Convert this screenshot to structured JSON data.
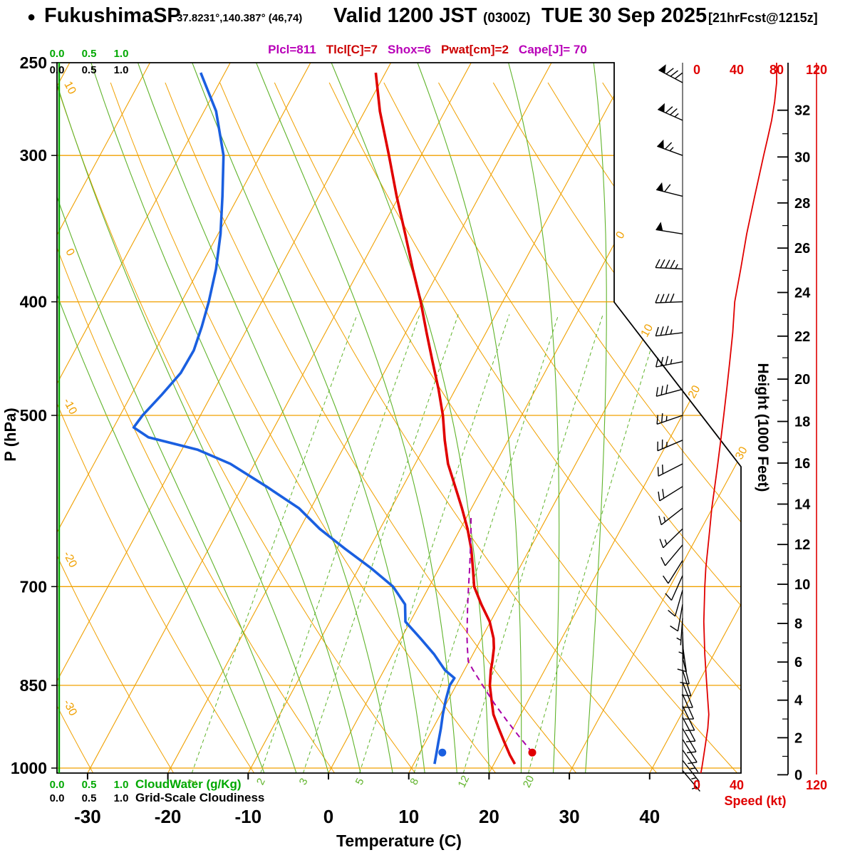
{
  "colors": {
    "orange": "#F0A000",
    "green": "#5FB32A",
    "green_text": "#00A800",
    "red": "#E00000",
    "blue": "#1A5FE0",
    "magenta": "#A800A8",
    "header_magenta": "#B800B8",
    "header_red": "#CC0000"
  },
  "header": {
    "bullet": "●",
    "station_name": "FukushimaSP",
    "station_coords": "37.8231°,140.387° (46,74)",
    "valid_main": "Valid 1200 JST",
    "valid_z": "(0300Z)",
    "valid_date": "TUE 30 Sep 2025",
    "forecast_tag": "[21hrFcst@1215z]",
    "param_segments": [
      {
        "text": "Plcl=811",
        "color": "#B800B8"
      },
      {
        "text": "Tlcl[C]=7",
        "color": "#CC0000"
      },
      {
        "text": "Shox=6",
        "color": "#B800B8"
      },
      {
        "text": "Pwat[cm]=2",
        "color": "#CC0000"
      },
      {
        "text": "Cape[J]= 70",
        "color": "#B800B8"
      }
    ]
  },
  "axes": {
    "pressure_label": "P (hPa)",
    "pressure_ticks": [
      250,
      300,
      400,
      500,
      700,
      850,
      1000
    ],
    "temperature_label": "Temperature (C)",
    "temperature_ticks": [
      -30,
      -20,
      -10,
      0,
      10,
      20,
      30,
      40
    ],
    "height_label": "Height (1000 Feet)",
    "height_ticks": [
      0,
      2,
      4,
      6,
      8,
      10,
      12,
      14,
      16,
      18,
      20,
      22,
      24,
      26,
      28,
      30,
      32
    ],
    "speed_label": "Speed (kt)",
    "speed_ticks_top": [
      0,
      40,
      80,
      120
    ],
    "speed_ticks_bottom": [
      0,
      40,
      120
    ]
  },
  "scales": {
    "cloudwater_values": [
      "0.0",
      "0.5",
      "1.0"
    ],
    "cloudiness_values": [
      "0.0",
      "0.5",
      "1.0"
    ],
    "cloudwater_label": "CloudWater (g/Kg)",
    "cloudiness_label": "Grid-Scale Cloudiness"
  },
  "chart_data": {
    "type": "skewt_sounding",
    "station": "FukushimaSP",
    "pressure_range_hpa": [
      250,
      1010
    ],
    "pressure_lines_hpa": [
      300,
      400,
      500,
      700,
      850,
      1000
    ],
    "isotherms_c": {
      "min": -90,
      "max": 40,
      "step": 10
    },
    "dry_adiabats_theta_c": {
      "min": -40,
      "max": 130,
      "step": 10
    },
    "moist_adiabats_c": [
      -8,
      -4,
      0,
      4,
      8,
      12,
      16,
      20,
      24,
      28,
      32
    ],
    "mixing_ratio_lines_gkg": [
      1,
      2,
      3,
      5,
      8,
      12,
      20
    ],
    "dry_adiabat_labels_c": [
      10,
      0,
      -10,
      -20,
      -30
    ],
    "isotherm_labels_c": [
      0,
      10,
      20,
      30
    ],
    "cloud_water_gkg": 0.0,
    "grid_scale_cloudiness": 0.0,
    "temperature_profile": [
      [
        992,
        22.6
      ],
      [
        975,
        21.4
      ],
      [
        950,
        19.8
      ],
      [
        925,
        18.2
      ],
      [
        900,
        16.6
      ],
      [
        875,
        15.4
      ],
      [
        850,
        14.2
      ],
      [
        825,
        13.3
      ],
      [
        811,
        12.9
      ],
      [
        790,
        12.2
      ],
      [
        775,
        11.5
      ],
      [
        750,
        9.9
      ],
      [
        725,
        7.7
      ],
      [
        700,
        5.6
      ],
      [
        675,
        4.2
      ],
      [
        650,
        2.7
      ],
      [
        625,
        0.9
      ],
      [
        600,
        -1.2
      ],
      [
        575,
        -3.5
      ],
      [
        550,
        -5.9
      ],
      [
        525,
        -7.9
      ],
      [
        500,
        -9.8
      ],
      [
        475,
        -12.1
      ],
      [
        450,
        -14.7
      ],
      [
        425,
        -17.4
      ],
      [
        400,
        -20.2
      ],
      [
        375,
        -23.4
      ],
      [
        350,
        -26.7
      ],
      [
        325,
        -30.3
      ],
      [
        300,
        -34.0
      ],
      [
        275,
        -38.1
      ],
      [
        255,
        -41.2
      ]
    ],
    "dewpoint_profile": [
      [
        992,
        12.6
      ],
      [
        975,
        12.2
      ],
      [
        950,
        11.6
      ],
      [
        925,
        11.0
      ],
      [
        900,
        10.3
      ],
      [
        875,
        9.7
      ],
      [
        850,
        9.2
      ],
      [
        838,
        9.3
      ],
      [
        825,
        7.6
      ],
      [
        800,
        5.2
      ],
      [
        775,
        2.4
      ],
      [
        750,
        -0.6
      ],
      [
        725,
        -1.8
      ],
      [
        700,
        -4.5
      ],
      [
        675,
        -8.5
      ],
      [
        650,
        -13.0
      ],
      [
        625,
        -17.5
      ],
      [
        600,
        -21.5
      ],
      [
        575,
        -27.0
      ],
      [
        550,
        -33.0
      ],
      [
        535,
        -38.0
      ],
      [
        522,
        -45.0
      ],
      [
        512,
        -47.5
      ],
      [
        500,
        -47.2
      ],
      [
        480,
        -46.2
      ],
      [
        460,
        -45.3
      ],
      [
        440,
        -45.2
      ],
      [
        420,
        -45.8
      ],
      [
        400,
        -46.6
      ],
      [
        375,
        -47.9
      ],
      [
        350,
        -49.7
      ],
      [
        325,
        -52.0
      ],
      [
        300,
        -54.6
      ],
      [
        275,
        -58.5
      ],
      [
        255,
        -63.0
      ]
    ],
    "parcel_path": [
      [
        970,
        24.0
      ],
      [
        940,
        21.3
      ],
      [
        910,
        18.6
      ],
      [
        880,
        15.9
      ],
      [
        850,
        13.3
      ],
      [
        825,
        11.1
      ],
      [
        811,
        9.9
      ],
      [
        790,
        8.9
      ],
      [
        775,
        8.2
      ],
      [
        750,
        7.1
      ],
      [
        725,
        6.0
      ],
      [
        700,
        4.9
      ],
      [
        675,
        3.8
      ],
      [
        650,
        2.6
      ],
      [
        630,
        1.6
      ],
      [
        610,
        0.5
      ]
    ],
    "surface_points": {
      "temperature": {
        "p": 970,
        "t": 24.0
      },
      "dewpoint": {
        "p": 970,
        "t": 12.8
      }
    },
    "wind_barbs": [
      [
        1005,
        140,
        4
      ],
      [
        985,
        142,
        5
      ],
      [
        965,
        145,
        7
      ],
      [
        945,
        148,
        9
      ],
      [
        925,
        150,
        11
      ],
      [
        905,
        152,
        12
      ],
      [
        885,
        154,
        12
      ],
      [
        865,
        156,
        11
      ],
      [
        845,
        158,
        10
      ],
      [
        825,
        162,
        9
      ],
      [
        805,
        166,
        8
      ],
      [
        785,
        172,
        8
      ],
      [
        765,
        178,
        7
      ],
      [
        745,
        184,
        7
      ],
      [
        725,
        190,
        8
      ],
      [
        705,
        196,
        8
      ],
      [
        685,
        204,
        9
      ],
      [
        665,
        212,
        10
      ],
      [
        645,
        220,
        11
      ],
      [
        625,
        226,
        13
      ],
      [
        600,
        232,
        15
      ],
      [
        575,
        238,
        18
      ],
      [
        550,
        243,
        21
      ],
      [
        525,
        247,
        24
      ],
      [
        500,
        251,
        27
      ],
      [
        475,
        255,
        30
      ],
      [
        450,
        259,
        33
      ],
      [
        425,
        263,
        36
      ],
      [
        400,
        268,
        38
      ],
      [
        375,
        273,
        44
      ],
      [
        350,
        279,
        50
      ],
      [
        325,
        284,
        58
      ],
      [
        300,
        290,
        67
      ],
      [
        280,
        294,
        75
      ],
      [
        260,
        298,
        80
      ]
    ],
    "wind_speed_profile_kt": [
      [
        1010,
        4
      ],
      [
        1000,
        5
      ],
      [
        975,
        7
      ],
      [
        950,
        9
      ],
      [
        925,
        11
      ],
      [
        900,
        12
      ],
      [
        875,
        11
      ],
      [
        850,
        10
      ],
      [
        825,
        9
      ],
      [
        800,
        8
      ],
      [
        775,
        7.5
      ],
      [
        750,
        7
      ],
      [
        725,
        7.5
      ],
      [
        700,
        8
      ],
      [
        675,
        9
      ],
      [
        650,
        11
      ],
      [
        625,
        13
      ],
      [
        600,
        15
      ],
      [
        575,
        18
      ],
      [
        550,
        21
      ],
      [
        525,
        24
      ],
      [
        500,
        27
      ],
      [
        475,
        30
      ],
      [
        450,
        33
      ],
      [
        425,
        36
      ],
      [
        400,
        38
      ],
      [
        375,
        44
      ],
      [
        350,
        50
      ],
      [
        325,
        58
      ],
      [
        300,
        67
      ],
      [
        290,
        71
      ],
      [
        280,
        75
      ],
      [
        270,
        78
      ],
      [
        260,
        80
      ],
      [
        250,
        80
      ]
    ]
  }
}
